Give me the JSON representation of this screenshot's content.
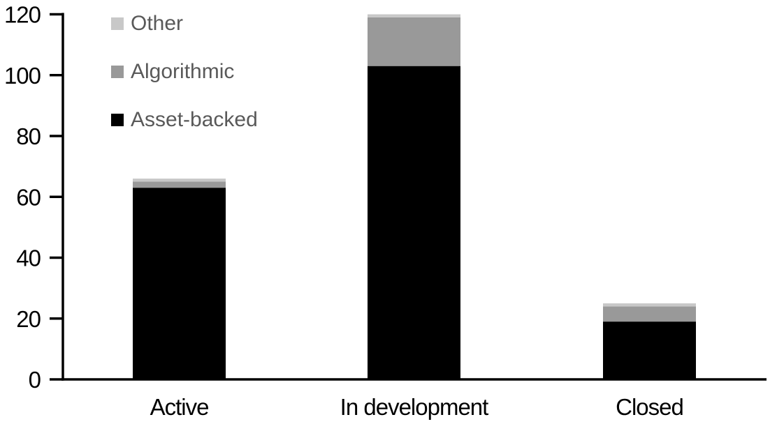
{
  "chart_data": {
    "type": "bar",
    "stacked": true,
    "title": "",
    "xlabel": "",
    "ylabel": "",
    "categories": [
      "Active",
      "In development",
      "Closed"
    ],
    "series": [
      {
        "name": "Asset-backed",
        "color": "#000000",
        "values": [
          63,
          103,
          19
        ]
      },
      {
        "name": "Algorithmic",
        "color": "#999999",
        "values": [
          2,
          16,
          5
        ]
      },
      {
        "name": "Other",
        "color": "#c8c8c8",
        "values": [
          1,
          1,
          1
        ]
      }
    ],
    "totals": [
      66,
      120,
      25
    ],
    "ylim": [
      0,
      120
    ],
    "yticks": [
      0,
      20,
      40,
      60,
      80,
      100,
      120
    ],
    "grid": false,
    "legend_position": "top-left",
    "legend": [
      {
        "label": "Other",
        "color": "#c8c8c8"
      },
      {
        "label": "Algorithmic",
        "color": "#999999"
      },
      {
        "label": "Asset-backed",
        "color": "#000000"
      }
    ],
    "colors": {
      "background": "#ffffff",
      "axis": "#000000",
      "tick_label": "#000000",
      "category_label": "#000000",
      "legend_text": "#595959"
    }
  }
}
